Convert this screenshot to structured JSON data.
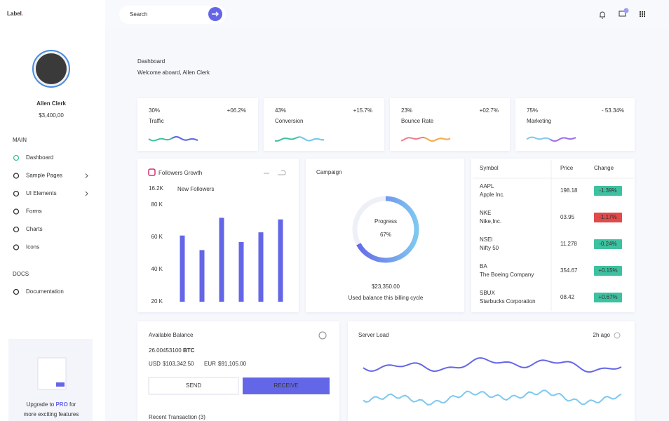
{
  "brand": {
    "name": "Label",
    "dot": "."
  },
  "search_placeholder": "Search",
  "profile": {
    "name": "Allen Clerk",
    "balance": "$3,400,00"
  },
  "nav": {
    "sections": [
      {
        "title": "MAIN",
        "items": [
          "Dashboard",
          "Sample Pages",
          "UI Elements",
          "Forms",
          "Charts",
          "Icons"
        ]
      },
      {
        "title": "DOCS",
        "items": [
          "Documentation"
        ]
      }
    ]
  },
  "upgrade": {
    "before": "Upgrade to",
    "pro": "PRO",
    "after": "for",
    "line2": "more exciting features"
  },
  "header": {
    "title": "Dashboard",
    "subtitle": "Welcome aboard, Allen Clerk"
  },
  "stats": [
    {
      "percent": "30%",
      "change": "+06.2%",
      "label": "Traffic"
    },
    {
      "percent": "43%",
      "change": "+15.7%",
      "label": "Conversion"
    },
    {
      "percent": "23%",
      "change": "+02.7%",
      "label": "Bounce Rate"
    },
    {
      "percent": "75%",
      "change": "- 53.34%",
      "label": "Marketing"
    }
  ],
  "followers": {
    "title": "Followers Growth",
    "count": "16.2K",
    "count_label": "New Followers",
    "chart": {
      "type": "bar",
      "color": "#6466e8",
      "values": [
        61,
        52,
        72,
        57,
        63,
        71
      ],
      "ylim": [
        20,
        80
      ],
      "yticks": [
        {
          "value": 20,
          "label": "20 K"
        },
        {
          "value": 40,
          "label": "40 K"
        },
        {
          "value": 60,
          "label": "60 K"
        },
        {
          "value": 80,
          "label": "80 K"
        }
      ]
    }
  },
  "campaign": {
    "title": "Campaign",
    "progress_label": "Progress",
    "progress": {
      "value": 67,
      "label": "67%"
    },
    "amount": "$23,350.00",
    "note": "Used balance this billing cycle"
  },
  "stocks": {
    "columns": [
      "Symbol",
      "Price",
      "Change"
    ],
    "rows": [
      {
        "symbol": "AAPL",
        "name": "Apple Inc.",
        "price": "198.18",
        "change": "-1.39%",
        "color": "#3ec1a0"
      },
      {
        "symbol": "NKE",
        "name": "Nike,Inc.",
        "price": "03.95",
        "change": "-1.17%",
        "color": "#e04a4a"
      },
      {
        "symbol": "NSEI",
        "name": "Nifty 50",
        "price": "11,278",
        "change": "-0.24%",
        "color": "#3ec1a0"
      },
      {
        "symbol": "BA",
        "name": "The Boeing Company",
        "price": "354.67",
        "change": "+0.15%",
        "color": "#3ec1a0"
      },
      {
        "symbol": "SBUX",
        "name": "Starbucks Corporation",
        "price": "08.42",
        "change": "+0.67%",
        "color": "#3ec1a0"
      }
    ]
  },
  "balance": {
    "title": "Available Balance",
    "amount": "26.00453100",
    "unit": "BTC",
    "usd_label": "USD",
    "usd": "$103,342.50",
    "eur_label": "EUR",
    "eur": "$91,105.00",
    "send": "SEND",
    "receive": "RECEIVE",
    "recent": "Recent Transaction (3)"
  },
  "server": {
    "title": "Server Load",
    "time": "2h ago"
  }
}
